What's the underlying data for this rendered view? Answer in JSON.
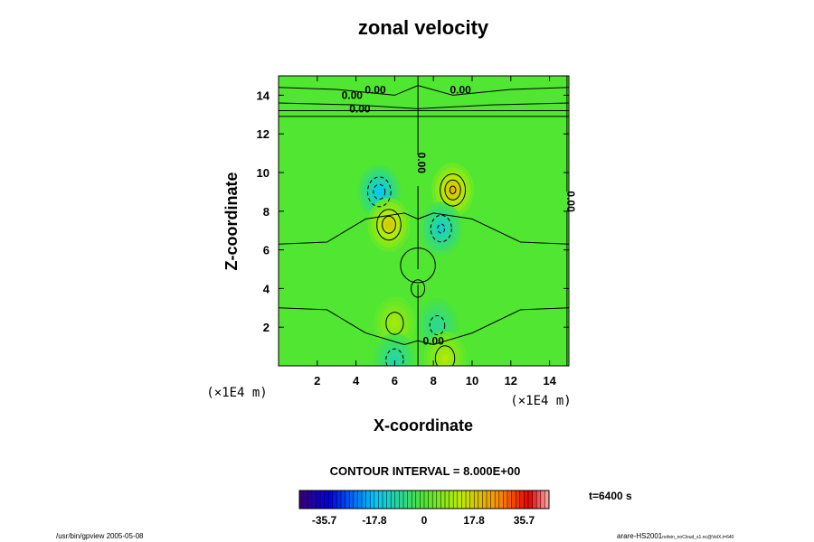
{
  "chart_data": {
    "type": "heatmap",
    "title": "zonal velocity",
    "xlabel": "X-coordinate",
    "ylabel": "Z-coordinate",
    "x_unit": "(×1E4 m)",
    "y_unit": "(×1E4 m)",
    "xlim": [
      0,
      15
    ],
    "ylim": [
      0,
      15
    ],
    "x_ticks": [
      2,
      4,
      6,
      8,
      10,
      12,
      14
    ],
    "y_ticks": [
      2,
      4,
      6,
      8,
      10,
      12,
      14
    ],
    "background_value": 0,
    "anomalies": [
      {
        "x": 5.2,
        "z": 9.0,
        "value": -20
      },
      {
        "x": 9.0,
        "z": 9.1,
        "value": 25
      },
      {
        "x": 5.7,
        "z": 7.3,
        "value": 22
      },
      {
        "x": 8.4,
        "z": 7.1,
        "value": -16
      },
      {
        "x": 6.0,
        "z": 2.2,
        "value": 12
      },
      {
        "x": 8.2,
        "z": 2.1,
        "value": -10
      },
      {
        "x": 6.0,
        "z": 0.3,
        "value": -12
      },
      {
        "x": 8.6,
        "z": 0.4,
        "value": 14
      }
    ],
    "contour_labels": [
      {
        "text": "0.00",
        "x": 5.0,
        "z": 14.1,
        "rotate": 0
      },
      {
        "text": "0.00",
        "x": 3.8,
        "z": 13.8,
        "rotate": 0
      },
      {
        "text": "0.00",
        "x": 9.4,
        "z": 14.1,
        "rotate": 0
      },
      {
        "text": "0.00",
        "x": 4.2,
        "z": 13.1,
        "rotate": 0
      },
      {
        "text": "0.00",
        "x": 7.2,
        "z": 10.5,
        "rotate": 90
      },
      {
        "text": "0.00",
        "x": 14.9,
        "z": 8.5,
        "rotate": 90
      },
      {
        "text": "0.00",
        "x": 8.0,
        "z": 1.1,
        "rotate": 0
      }
    ],
    "contour_interval_text": "CONTOUR INTERVAL = 8.000E+00",
    "time_text": "t=6400 s",
    "colorbar": {
      "min": -44.6,
      "max": 44.6,
      "tick_labels": [
        "-35.7",
        "-17.8",
        "0",
        "17.8",
        "35.7"
      ],
      "tick_values": [
        -35.7,
        -17.8,
        0,
        17.8,
        35.7
      ]
    }
  },
  "footer": {
    "left": "/usr/bin/gpview 2005-05-08",
    "right_main": "arare-HS2001",
    "right_sub": "nofein_noCloud_s1.nc@VelX,t=640"
  }
}
